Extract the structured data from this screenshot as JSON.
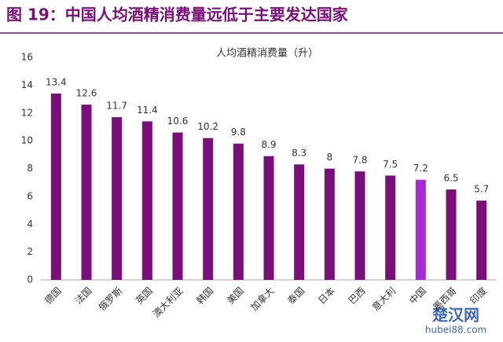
{
  "header": {
    "title": "图 19：中国人均酒精消费量远低于主要发达国家"
  },
  "chart_data": {
    "type": "bar",
    "title": "人均酒精消费量（升）",
    "categories": [
      "德国",
      "法国",
      "俄罗斯",
      "英国",
      "澳大利亚",
      "韩国",
      "美国",
      "加拿大",
      "泰国",
      "日本",
      "巴西",
      "意大利",
      "中国",
      "墨西哥",
      "印度"
    ],
    "values": [
      13.4,
      12.6,
      11.7,
      11.4,
      10.6,
      10.2,
      9.8,
      8.9,
      8.3,
      8,
      7.8,
      7.5,
      7.2,
      6.5,
      5.7
    ],
    "colors": [
      "#7a0f7a",
      "#7a0f7a",
      "#7a0f7a",
      "#7a0f7a",
      "#7a0f7a",
      "#7a0f7a",
      "#7a0f7a",
      "#7a0f7a",
      "#7a0f7a",
      "#7a0f7a",
      "#7a0f7a",
      "#7a0f7a",
      "#a72ad6",
      "#7a0f7a",
      "#7a0f7a"
    ],
    "ylim": [
      0,
      16
    ],
    "yticks": [
      0,
      2,
      4,
      6,
      8,
      10,
      12,
      14,
      16
    ],
    "grid": false
  },
  "watermark": {
    "name": "楚汉网",
    "url": "hubei88.com"
  }
}
